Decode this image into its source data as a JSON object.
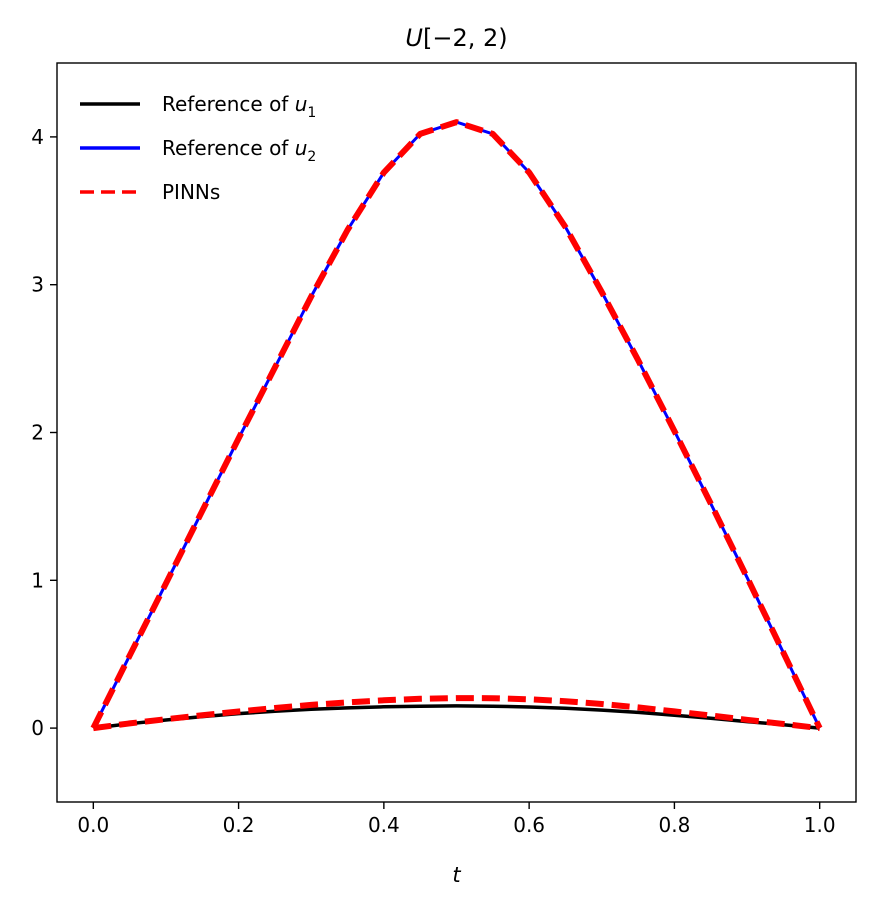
{
  "chart_data": {
    "type": "line",
    "title": "U[−2, 2)",
    "xlabel": "t",
    "ylabel": "",
    "xlim": [
      -0.05,
      1.05
    ],
    "ylim": [
      -0.5,
      4.5
    ],
    "xticks": [
      0.0,
      0.2,
      0.4,
      0.6,
      0.8,
      1.0
    ],
    "xtick_labels": [
      "0.0",
      "0.2",
      "0.4",
      "0.6",
      "0.8",
      "1.0"
    ],
    "yticks": [
      0,
      1,
      2,
      3,
      4
    ],
    "ytick_labels": [
      "0",
      "1",
      "2",
      "3",
      "4"
    ],
    "grid": false,
    "legend_position": "top-left",
    "legend": [
      {
        "text": "Reference of ",
        "subvar": "u",
        "sub": "1",
        "color": "#000000",
        "style": "solid"
      },
      {
        "text": "Reference of ",
        "subvar": "u",
        "sub": "2",
        "color": "#0000ff",
        "style": "solid"
      },
      {
        "text": "PINNs",
        "subvar": "",
        "sub": "",
        "color": "#ff0000",
        "style": "dashed"
      }
    ],
    "series": [
      {
        "legend_index": 0,
        "color": "#000000",
        "style": "solid",
        "x": [
          0.0,
          0.05,
          0.1,
          0.15,
          0.2,
          0.25,
          0.3,
          0.35,
          0.4,
          0.45,
          0.5,
          0.55,
          0.6,
          0.65,
          0.7,
          0.75,
          0.8,
          0.85,
          0.9,
          0.95,
          1.0
        ],
        "y": [
          0.0,
          0.03,
          0.055,
          0.078,
          0.098,
          0.114,
          0.127,
          0.137,
          0.144,
          0.148,
          0.15,
          0.148,
          0.143,
          0.134,
          0.122,
          0.106,
          0.087,
          0.066,
          0.044,
          0.022,
          0.0
        ]
      },
      {
        "legend_index": 1,
        "color": "#0000ff",
        "style": "solid",
        "x": [
          0.0,
          0.05,
          0.1,
          0.15,
          0.2,
          0.25,
          0.3,
          0.35,
          0.4,
          0.45,
          0.5,
          0.55,
          0.6,
          0.65,
          0.7,
          0.75,
          0.8,
          0.85,
          0.9,
          0.95,
          1.0
        ],
        "y": [
          0.0,
          0.49,
          0.98,
          1.47,
          1.96,
          2.44,
          2.92,
          3.37,
          3.76,
          4.02,
          4.1,
          4.02,
          3.76,
          3.39,
          2.95,
          2.49,
          2.01,
          1.52,
          1.02,
          0.51,
          0.0
        ]
      },
      {
        "legend_index": 2,
        "color": "#ff0000",
        "style": "dashed",
        "x": [
          0.0,
          0.05,
          0.1,
          0.15,
          0.2,
          0.25,
          0.3,
          0.35,
          0.4,
          0.45,
          0.5,
          0.55,
          0.6,
          0.65,
          0.7,
          0.75,
          0.8,
          0.85,
          0.9,
          0.95,
          1.0
        ],
        "y": [
          0.0,
          0.032,
          0.06,
          0.087,
          0.112,
          0.136,
          0.157,
          0.174,
          0.188,
          0.198,
          0.203,
          0.202,
          0.195,
          0.182,
          0.163,
          0.14,
          0.113,
          0.085,
          0.056,
          0.028,
          0.0
        ]
      },
      {
        "legend_index": 2,
        "color": "#ff0000",
        "style": "dashed",
        "x": [
          0.0,
          0.05,
          0.1,
          0.15,
          0.2,
          0.25,
          0.3,
          0.35,
          0.4,
          0.45,
          0.5,
          0.55,
          0.6,
          0.65,
          0.7,
          0.75,
          0.8,
          0.85,
          0.9,
          0.95,
          1.0
        ],
        "y": [
          0.0,
          0.49,
          0.98,
          1.47,
          1.96,
          2.44,
          2.92,
          3.37,
          3.76,
          4.02,
          4.1,
          4.02,
          3.76,
          3.39,
          2.95,
          2.49,
          2.01,
          1.52,
          1.02,
          0.51,
          0.0
        ]
      }
    ]
  }
}
